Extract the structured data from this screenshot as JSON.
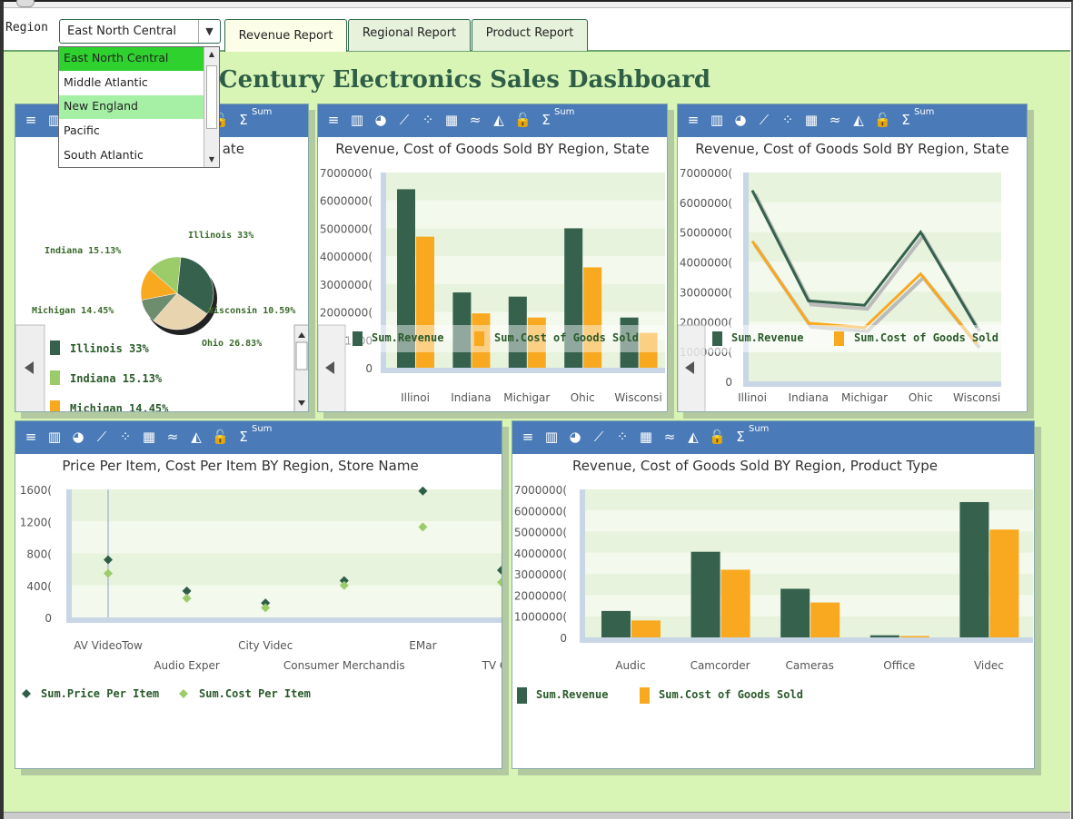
{
  "header": {
    "region_label": "Region",
    "region_selected": "East North Central",
    "tabs": [
      "Revenue Report",
      "Regional Report",
      "Product Report"
    ],
    "active_tab": "Revenue Report"
  },
  "dropdown": {
    "options": [
      "East North Central",
      "Middle Atlantic",
      "New England",
      "Pacific",
      "South Atlantic"
    ],
    "selected": "East North Central",
    "hovered": "New England"
  },
  "dashboard_title": "Century Electronics Sales Dashboard",
  "toolbar": {
    "icons": [
      "sort-icon",
      "bar-chart-icon",
      "pie-chart-icon",
      "line-chart-icon",
      "scatter-chart-icon",
      "table-icon",
      "multi-line-icon",
      "area-chart-icon",
      "lock-icon",
      "sum-icon"
    ],
    "sum_label": "Sum"
  },
  "colors": {
    "revenue": "#35614d",
    "cost": "#f9a91f",
    "toolbar": "#4a7ab8",
    "canvas": "#d9f5b6",
    "price_marker": "#2e5e47",
    "cost_marker": "#9ccc6a"
  },
  "panels": {
    "pie": {
      "title_visible": "ate",
      "legend": [
        {
          "label": "Illinois 33%",
          "color": "#35614d"
        },
        {
          "label": "Indiana 15.13%",
          "color": "#9ccc6a"
        },
        {
          "label": "Michigan 14.45%",
          "color": "#f9a91f"
        }
      ]
    },
    "bar_state": {
      "title": "Revenue, Cost of Goods Sold BY Region, State",
      "legend": [
        "Sum.Revenue",
        "Sum.Cost of Goods Sold"
      ]
    },
    "line_state": {
      "title": "Revenue, Cost of Goods Sold BY Region, State",
      "legend": [
        "Sum.Revenue",
        "Sum.Cost of Goods Sold"
      ]
    },
    "scatter_store": {
      "title": "Price Per Item, Cost Per Item BY Region, Store Name",
      "legend": [
        "Sum.Price Per Item",
        "Sum.Cost Per Item"
      ]
    },
    "bar_product": {
      "title": "Revenue, Cost of Goods Sold BY Region, Product Type",
      "legend": [
        "Sum.Revenue",
        "Sum.Cost of Goods Sold"
      ]
    }
  },
  "chart_data": [
    {
      "type": "pie",
      "title": "",
      "slices": [
        {
          "label": "Illinois 33%",
          "value": 33,
          "color": "#35614d"
        },
        {
          "label": "Ohio 26.83%",
          "value": 26.83,
          "color": "#e8d5b0"
        },
        {
          "label": "Wisconsin 10.59%",
          "value": 10.59,
          "color": "#6e8c6e"
        },
        {
          "label": "Michigan 14.45%",
          "value": 14.45,
          "color": "#f9a91f"
        },
        {
          "label": "Indiana 15.13%",
          "value": 15.13,
          "color": "#9ccc6a"
        }
      ]
    },
    {
      "type": "bar",
      "title": "Revenue, Cost of Goods Sold BY Region, State",
      "categories": [
        "Illinois",
        "Indiana",
        "Michigan",
        "Ohio",
        "Wisconsin"
      ],
      "category_labels": [
        "Illinoi",
        "Indiana",
        "Michigar",
        "Ohic",
        "Wisconsi"
      ],
      "series": [
        {
          "name": "Sum.Revenue",
          "values": [
            64000000,
            27000000,
            25500000,
            50000000,
            18000000
          ]
        },
        {
          "name": "Sum.Cost of Goods Sold",
          "values": [
            47000000,
            19500000,
            18000000,
            36000000,
            12500000
          ]
        }
      ],
      "ylim": [
        0,
        70000000
      ],
      "yticks": [
        "70000000",
        "60000000",
        "50000000",
        "40000000",
        "30000000",
        "20000000",
        "10000000",
        "0"
      ],
      "ytick_labels": [
        "7000000(",
        "6000000(",
        "5000000(",
        "4000000(",
        "3000000(",
        "2000000(",
        "1000",
        "0"
      ]
    },
    {
      "type": "line",
      "title": "Revenue, Cost of Goods Sold BY Region, State",
      "categories": [
        "Illinois",
        "Indiana",
        "Michigan",
        "Ohio",
        "Wisconsin"
      ],
      "category_labels": [
        "Illinoi",
        "Indiana",
        "Michigar",
        "Ohic",
        "Wisconsi"
      ],
      "series": [
        {
          "name": "Sum.Revenue",
          "values": [
            64000000,
            27000000,
            25500000,
            50000000,
            18000000
          ]
        },
        {
          "name": "Sum.Cost of Goods Sold",
          "values": [
            47000000,
            19500000,
            18000000,
            36000000,
            12500000
          ]
        }
      ],
      "ylim": [
        0,
        70000000
      ],
      "ytick_labels": [
        "7000000(",
        "6000000(",
        "5000000(",
        "4000000(",
        "3000000(",
        "2000000(",
        "1000000(",
        "0"
      ]
    },
    {
      "type": "scatter",
      "title": "Price Per Item, Cost Per Item BY Region, Store Name",
      "categories": [
        "AV VideoTow",
        "Audio Exper",
        "City Videc",
        "Consumer Merchandis",
        "EMart",
        "TV City"
      ],
      "category_labels": [
        "AV VideoTow",
        "Audio Exper",
        "City Videc",
        "Consumer Merchandis",
        "EMar",
        "TV City"
      ],
      "series": [
        {
          "name": "Sum.Price Per Item",
          "values": [
            7200,
            3300,
            1800,
            4600,
            15800,
            5900
          ]
        },
        {
          "name": "Sum.Cost Per Item",
          "values": [
            5500,
            2400,
            1200,
            4000,
            11300,
            4400
          ]
        }
      ],
      "ylim": [
        0,
        16000
      ],
      "ytick_labels": [
        "1600(",
        "1200(",
        "800(",
        "400(",
        "0"
      ]
    },
    {
      "type": "bar",
      "title": "Revenue, Cost of Goods Sold BY Region, Product Type",
      "categories": [
        "Audio",
        "Camcorder",
        "Cameras",
        "Office",
        "Video"
      ],
      "category_labels": [
        "Audic",
        "Camcorder",
        "Cameras",
        "Office",
        "Videc"
      ],
      "series": [
        {
          "name": "Sum.Revenue",
          "values": [
            12500000,
            40500000,
            23000000,
            1000000,
            64000000
          ]
        },
        {
          "name": "Sum.Cost of Goods Sold",
          "values": [
            8000000,
            32000000,
            16500000,
            500000,
            51000000
          ]
        }
      ],
      "ylim": [
        0,
        70000000
      ],
      "ytick_labels": [
        "7000000(",
        "6000000(",
        "5000000(",
        "4000000(",
        "3000000(",
        "2000000(",
        "1000000(",
        "0"
      ]
    }
  ]
}
